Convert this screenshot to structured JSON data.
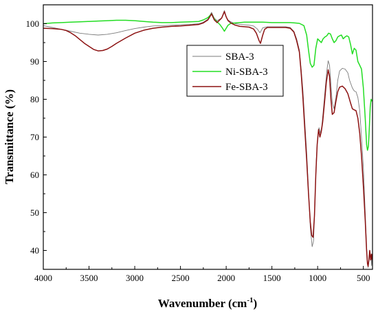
{
  "chart_data": {
    "type": "line",
    "title": "",
    "xlabel": "Wavenumber (cm",
    "xlabel_sup": "-1",
    "xlabel_close": ")",
    "ylabel": "Transmittance (%)",
    "xlim": [
      4000,
      400
    ],
    "ylim": [
      35,
      105
    ],
    "x_reversed": true,
    "grid": false,
    "legend_position": "upper-right",
    "x_ticks": [
      4000,
      3500,
      3000,
      2500,
      2000,
      1500,
      1000,
      500
    ],
    "y_ticks": [
      40,
      50,
      60,
      70,
      80,
      90,
      100
    ],
    "series": [
      {
        "name": "SBA-3",
        "color": "#7a7a7a",
        "points": [
          [
            4000,
            99.5
          ],
          [
            3900,
            99.0
          ],
          [
            3800,
            98.5
          ],
          [
            3700,
            98.0
          ],
          [
            3600,
            97.5
          ],
          [
            3500,
            97.2
          ],
          [
            3400,
            97.0
          ],
          [
            3300,
            97.2
          ],
          [
            3200,
            97.6
          ],
          [
            3100,
            98.2
          ],
          [
            3000,
            98.7
          ],
          [
            2900,
            99.1
          ],
          [
            2800,
            99.4
          ],
          [
            2700,
            99.5
          ],
          [
            2600,
            99.6
          ],
          [
            2500,
            99.7
          ],
          [
            2400,
            99.8
          ],
          [
            2300,
            100.0
          ],
          [
            2250,
            100.4
          ],
          [
            2200,
            101.2
          ],
          [
            2160,
            103.0
          ],
          [
            2130,
            101.5
          ],
          [
            2100,
            100.8
          ],
          [
            2050,
            101.5
          ],
          [
            2020,
            103.5
          ],
          [
            2000,
            101.8
          ],
          [
            1980,
            101.0
          ],
          [
            1950,
            100.5
          ],
          [
            1900,
            100.0
          ],
          [
            1850,
            99.8
          ],
          [
            1800,
            99.7
          ],
          [
            1750,
            99.6
          ],
          [
            1700,
            99.4
          ],
          [
            1660,
            98.6
          ],
          [
            1630,
            97.6
          ],
          [
            1600,
            98.9
          ],
          [
            1550,
            99.2
          ],
          [
            1450,
            99.2
          ],
          [
            1350,
            99.2
          ],
          [
            1300,
            99.0
          ],
          [
            1260,
            98.0
          ],
          [
            1230,
            96.0
          ],
          [
            1200,
            93.0
          ],
          [
            1180,
            88.0
          ],
          [
            1160,
            82.0
          ],
          [
            1140,
            74.0
          ],
          [
            1120,
            66.0
          ],
          [
            1100,
            56.0
          ],
          [
            1080,
            46.0
          ],
          [
            1060,
            41.0
          ],
          [
            1045,
            42.5
          ],
          [
            1030,
            52.0
          ],
          [
            1015,
            64.0
          ],
          [
            1000,
            70.0
          ],
          [
            985,
            72.5
          ],
          [
            970,
            71.0
          ],
          [
            955,
            72.8
          ],
          [
            940,
            76.5
          ],
          [
            920,
            82.0
          ],
          [
            900,
            87.5
          ],
          [
            885,
            90.2
          ],
          [
            870,
            89.0
          ],
          [
            855,
            84.0
          ],
          [
            840,
            79.0
          ],
          [
            820,
            77.5
          ],
          [
            800,
            80.5
          ],
          [
            780,
            85.0
          ],
          [
            760,
            87.5
          ],
          [
            730,
            88.2
          ],
          [
            700,
            88.0
          ],
          [
            670,
            87.0
          ],
          [
            650,
            85.0
          ],
          [
            620,
            83.0
          ],
          [
            600,
            82.2
          ],
          [
            580,
            82.0
          ],
          [
            560,
            80.5
          ],
          [
            540,
            77.0
          ],
          [
            520,
            70.0
          ],
          [
            500,
            62.0
          ],
          [
            480,
            50.0
          ],
          [
            465,
            41.0
          ],
          [
            455,
            37.0
          ],
          [
            448,
            35.5
          ],
          [
            440,
            37.0
          ],
          [
            430,
            38.5
          ],
          [
            420,
            39.0
          ],
          [
            410,
            36.0
          ],
          [
            405,
            38.0
          ]
        ]
      },
      {
        "name": "Ni-SBA-3",
        "color": "#22dd22",
        "points": [
          [
            4000,
            100.0
          ],
          [
            3900,
            100.2
          ],
          [
            3800,
            100.3
          ],
          [
            3700,
            100.4
          ],
          [
            3600,
            100.5
          ],
          [
            3500,
            100.6
          ],
          [
            3400,
            100.7
          ],
          [
            3300,
            100.8
          ],
          [
            3200,
            100.9
          ],
          [
            3100,
            100.9
          ],
          [
            3000,
            100.8
          ],
          [
            2900,
            100.6
          ],
          [
            2800,
            100.4
          ],
          [
            2700,
            100.3
          ],
          [
            2600,
            100.3
          ],
          [
            2500,
            100.4
          ],
          [
            2400,
            100.5
          ],
          [
            2300,
            100.6
          ],
          [
            2250,
            101.0
          ],
          [
            2200,
            101.6
          ],
          [
            2160,
            102.6
          ],
          [
            2130,
            101.2
          ],
          [
            2100,
            100.5
          ],
          [
            2070,
            99.8
          ],
          [
            2040,
            98.8
          ],
          [
            2020,
            98.0
          ],
          [
            2000,
            98.8
          ],
          [
            1980,
            99.6
          ],
          [
            1950,
            100.1
          ],
          [
            1900,
            100.2
          ],
          [
            1850,
            100.3
          ],
          [
            1800,
            100.4
          ],
          [
            1700,
            100.4
          ],
          [
            1600,
            100.4
          ],
          [
            1500,
            100.3
          ],
          [
            1400,
            100.3
          ],
          [
            1300,
            100.3
          ],
          [
            1250,
            100.2
          ],
          [
            1200,
            100.1
          ],
          [
            1150,
            99.5
          ],
          [
            1120,
            97.0
          ],
          [
            1100,
            93.0
          ],
          [
            1080,
            89.5
          ],
          [
            1060,
            88.5
          ],
          [
            1040,
            89.0
          ],
          [
            1020,
            93.5
          ],
          [
            1000,
            96.0
          ],
          [
            980,
            95.5
          ],
          [
            960,
            95.0
          ],
          [
            940,
            96.0
          ],
          [
            920,
            96.5
          ],
          [
            900,
            96.8
          ],
          [
            880,
            97.5
          ],
          [
            860,
            97.3
          ],
          [
            840,
            96.0
          ],
          [
            820,
            95.0
          ],
          [
            800,
            95.5
          ],
          [
            780,
            96.5
          ],
          [
            760,
            96.8
          ],
          [
            740,
            97.0
          ],
          [
            720,
            96.0
          ],
          [
            700,
            96.5
          ],
          [
            680,
            96.8
          ],
          [
            660,
            96.5
          ],
          [
            640,
            94.5
          ],
          [
            620,
            92.0
          ],
          [
            600,
            93.5
          ],
          [
            580,
            93.0
          ],
          [
            560,
            90.0
          ],
          [
            540,
            89.0
          ],
          [
            520,
            88.0
          ],
          [
            500,
            83.0
          ],
          [
            480,
            75.0
          ],
          [
            465,
            68.0
          ],
          [
            455,
            66.5
          ],
          [
            445,
            67.5
          ],
          [
            435,
            72.0
          ],
          [
            425,
            78.0
          ],
          [
            415,
            80.0
          ],
          [
            405,
            79.5
          ]
        ]
      },
      {
        "name": "Fe-SBA-3",
        "color": "#8b1010",
        "points": [
          [
            4000,
            98.8
          ],
          [
            3900,
            98.7
          ],
          [
            3800,
            98.5
          ],
          [
            3750,
            98.2
          ],
          [
            3700,
            97.6
          ],
          [
            3650,
            96.8
          ],
          [
            3600,
            95.8
          ],
          [
            3550,
            94.8
          ],
          [
            3500,
            94.0
          ],
          [
            3450,
            93.2
          ],
          [
            3400,
            92.8
          ],
          [
            3350,
            92.9
          ],
          [
            3300,
            93.3
          ],
          [
            3250,
            94.0
          ],
          [
            3200,
            94.8
          ],
          [
            3100,
            96.2
          ],
          [
            3000,
            97.5
          ],
          [
            2900,
            98.3
          ],
          [
            2800,
            98.8
          ],
          [
            2700,
            99.1
          ],
          [
            2600,
            99.3
          ],
          [
            2500,
            99.4
          ],
          [
            2400,
            99.6
          ],
          [
            2300,
            99.8
          ],
          [
            2250,
            100.2
          ],
          [
            2200,
            101.0
          ],
          [
            2160,
            102.6
          ],
          [
            2130,
            101.0
          ],
          [
            2100,
            100.3
          ],
          [
            2050,
            101.5
          ],
          [
            2020,
            103.2
          ],
          [
            2000,
            101.8
          ],
          [
            1980,
            100.8
          ],
          [
            1950,
            100.2
          ],
          [
            1900,
            99.6
          ],
          [
            1850,
            99.3
          ],
          [
            1800,
            99.2
          ],
          [
            1750,
            99.1
          ],
          [
            1700,
            98.6
          ],
          [
            1670,
            97.5
          ],
          [
            1640,
            95.5
          ],
          [
            1625,
            94.8
          ],
          [
            1600,
            97.0
          ],
          [
            1580,
            98.5
          ],
          [
            1550,
            99.0
          ],
          [
            1450,
            99.0
          ],
          [
            1350,
            99.0
          ],
          [
            1300,
            98.8
          ],
          [
            1260,
            97.8
          ],
          [
            1230,
            95.5
          ],
          [
            1200,
            92.5
          ],
          [
            1180,
            87.0
          ],
          [
            1160,
            80.0
          ],
          [
            1140,
            72.0
          ],
          [
            1120,
            64.0
          ],
          [
            1100,
            55.0
          ],
          [
            1080,
            47.5
          ],
          [
            1065,
            44.0
          ],
          [
            1050,
            43.5
          ],
          [
            1035,
            49.0
          ],
          [
            1020,
            60.0
          ],
          [
            1005,
            68.0
          ],
          [
            990,
            72.0
          ],
          [
            975,
            70.0
          ],
          [
            960,
            71.5
          ],
          [
            945,
            74.0
          ],
          [
            925,
            79.0
          ],
          [
            905,
            84.5
          ],
          [
            885,
            87.8
          ],
          [
            870,
            86.0
          ],
          [
            855,
            80.0
          ],
          [
            840,
            76.0
          ],
          [
            820,
            76.5
          ],
          [
            800,
            79.5
          ],
          [
            780,
            82.0
          ],
          [
            760,
            83.2
          ],
          [
            730,
            83.5
          ],
          [
            700,
            82.8
          ],
          [
            670,
            81.5
          ],
          [
            640,
            79.0
          ],
          [
            620,
            77.5
          ],
          [
            600,
            77.2
          ],
          [
            580,
            77.0
          ],
          [
            560,
            75.0
          ],
          [
            540,
            71.0
          ],
          [
            520,
            65.0
          ],
          [
            500,
            57.0
          ],
          [
            480,
            48.0
          ],
          [
            465,
            40.0
          ],
          [
            455,
            36.5
          ],
          [
            448,
            35.8
          ],
          [
            440,
            37.5
          ],
          [
            430,
            40.0
          ],
          [
            420,
            37.5
          ],
          [
            410,
            39.0
          ],
          [
            405,
            37.5
          ]
        ]
      }
    ]
  }
}
